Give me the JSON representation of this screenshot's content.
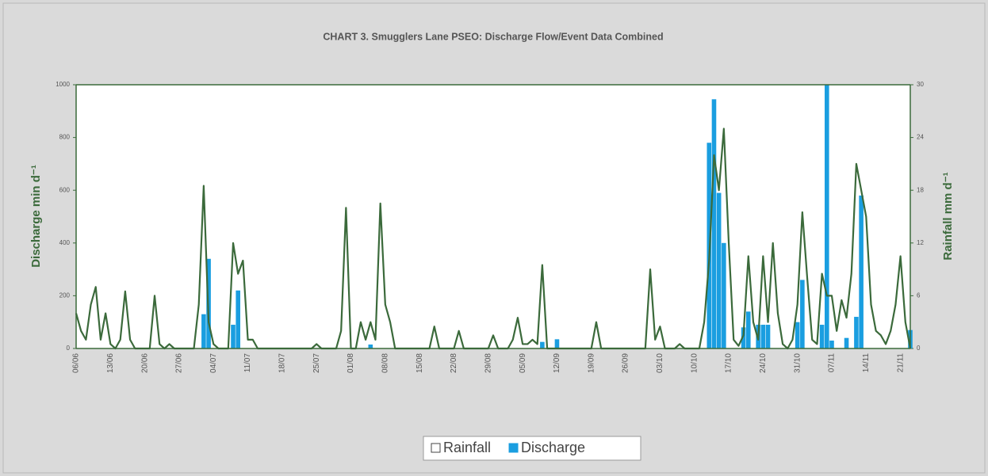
{
  "chart_data": {
    "type": "bar_line",
    "title": "CHART 3. Smugglers Lane PSEO: Discharge Flow/Event Data Combined",
    "y_label": "Discharge min d⁻¹",
    "y2_label": "Rainfall mm d⁻¹",
    "categories": [
      "06/06",
      null,
      null,
      null,
      null,
      null,
      null,
      "13/06",
      null,
      null,
      null,
      null,
      null,
      null,
      "20/06",
      null,
      null,
      null,
      null,
      null,
      null,
      "27/06",
      null,
      null,
      null,
      null,
      null,
      null,
      "04/07",
      null,
      null,
      null,
      null,
      null,
      null,
      "11/07",
      null,
      null,
      null,
      null,
      null,
      null,
      "18/07",
      null,
      null,
      null,
      null,
      null,
      null,
      "25/07",
      null,
      null,
      null,
      null,
      null,
      null,
      "01/08",
      null,
      null,
      null,
      null,
      null,
      null,
      "08/08",
      null,
      null,
      null,
      null,
      null,
      null,
      "15/08",
      null,
      null,
      null,
      null,
      null,
      null,
      "22/08",
      null,
      null,
      null,
      null,
      null,
      null,
      "29/08",
      null,
      null,
      null,
      null,
      null,
      null,
      "05/09",
      null,
      null,
      null,
      null,
      null,
      null,
      "12/09",
      null,
      null,
      null,
      null,
      null,
      null,
      "19/09",
      null,
      null,
      null,
      null,
      null,
      null,
      "26/09",
      null,
      null,
      null,
      null,
      null,
      null,
      "03/10",
      null,
      null,
      null,
      null,
      null,
      null,
      "10/10",
      null,
      null,
      null,
      null,
      null,
      null,
      "17/10",
      null,
      null,
      null,
      null,
      null,
      null,
      "24/10",
      null,
      null,
      null,
      null,
      null,
      null,
      "31/10",
      null,
      null,
      null,
      null,
      null,
      null,
      "07/11",
      null,
      null,
      null,
      null,
      null,
      null,
      "14/11",
      null,
      null,
      null,
      null,
      null,
      null,
      "21/11",
      null,
      null
    ],
    "series": [
      {
        "name": "Rainfall",
        "type": "line",
        "axis": "y2",
        "color": "#3b6a3b",
        "values": [
          4,
          2,
          1,
          5,
          7,
          1,
          4,
          0.5,
          0,
          1,
          6.5,
          1,
          0,
          0,
          0,
          0,
          6,
          0.5,
          0,
          0.5,
          0,
          0,
          0,
          0,
          0,
          5,
          18.5,
          3,
          0.5,
          0,
          0,
          0,
          12,
          8.5,
          10,
          1,
          1,
          0,
          0,
          0,
          0,
          0,
          0,
          0,
          0,
          0,
          0,
          0,
          0,
          0.5,
          0,
          0,
          0,
          0,
          2,
          16,
          0,
          0,
          3,
          1,
          3,
          1,
          16.5,
          5,
          3,
          0,
          0,
          0,
          0,
          0,
          0,
          0,
          0,
          2.5,
          0,
          0,
          0,
          0,
          2,
          0,
          0,
          0,
          0,
          0,
          0,
          1.5,
          0,
          0,
          0,
          1,
          3.5,
          0.5,
          0.5,
          1,
          0.5,
          9.5,
          0,
          0,
          0,
          0,
          0,
          0,
          0,
          0,
          0,
          0,
          3,
          0,
          0,
          0,
          0,
          0,
          0,
          0,
          0,
          0,
          0,
          9,
          1,
          2.5,
          0,
          0,
          0,
          0.5,
          0,
          0,
          0,
          0,
          3,
          10,
          22,
          18,
          25,
          12,
          1,
          0.3,
          1.5,
          10.5,
          3,
          1,
          10.5,
          3,
          12,
          4,
          0.5,
          0,
          1,
          5,
          15.5,
          8,
          1,
          0.5,
          8.5,
          6,
          6,
          2,
          5.5,
          3.5,
          8.5,
          21,
          18,
          15,
          5,
          2,
          1.5,
          0.5,
          2,
          5,
          10.5,
          3,
          0
        ]
      },
      {
        "name": "Discharge",
        "type": "bar",
        "axis": "y",
        "color": "#1a9ee0",
        "values": [
          0,
          0,
          0,
          0,
          0,
          0,
          0,
          0,
          0,
          0,
          0,
          0,
          0,
          0,
          0,
          0,
          0,
          0,
          0,
          0,
          0,
          0,
          0,
          0,
          0,
          0,
          130,
          340,
          0,
          0,
          0,
          0,
          90,
          220,
          0,
          0,
          0,
          0,
          0,
          0,
          0,
          0,
          0,
          0,
          0,
          0,
          0,
          0,
          0,
          0,
          0,
          0,
          0,
          0,
          0,
          0,
          0,
          0,
          0,
          0,
          15,
          0,
          0,
          0,
          0,
          0,
          0,
          0,
          0,
          0,
          0,
          0,
          0,
          0,
          0,
          0,
          0,
          0,
          0,
          0,
          0,
          0,
          0,
          0,
          0,
          0,
          0,
          0,
          0,
          0,
          0,
          0,
          0,
          0,
          0,
          25,
          0,
          0,
          35,
          0,
          0,
          0,
          0,
          0,
          0,
          0,
          0,
          0,
          0,
          0,
          0,
          0,
          0,
          0,
          0,
          0,
          0,
          0,
          0,
          0,
          0,
          0,
          0,
          0,
          0,
          0,
          0,
          0,
          0,
          780,
          945,
          590,
          400,
          0,
          0,
          0,
          80,
          140,
          0,
          90,
          90,
          90,
          0,
          0,
          0,
          0,
          0,
          100,
          260,
          0,
          0,
          0,
          90,
          1000,
          30,
          0,
          0,
          40,
          0,
          120,
          580,
          0,
          0,
          0,
          0,
          0,
          0,
          0,
          0,
          0,
          70
        ]
      }
    ],
    "ylim": [
      0,
      1000
    ],
    "yticks": [
      0,
      200,
      400,
      600,
      800,
      1000
    ],
    "y2lim": [
      0,
      30
    ],
    "y2ticks": [
      0,
      6,
      12,
      18,
      24,
      30
    ],
    "legend": "bottom"
  }
}
